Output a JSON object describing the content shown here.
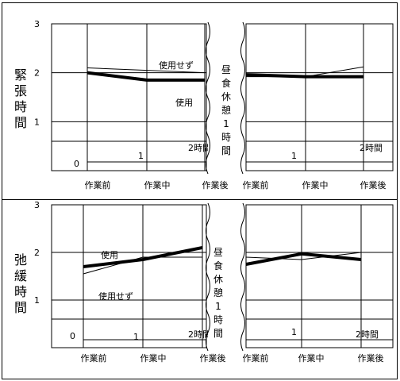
{
  "break_label": [
    "昼",
    "食",
    "休",
    "憩",
    "1",
    "時",
    "間"
  ],
  "chart_data": [
    {
      "type": "line",
      "ylabel": [
        "緊",
        "張",
        "時",
        "間"
      ],
      "yticks": [
        "3",
        "2",
        "1"
      ],
      "ylim": [
        0,
        3
      ],
      "left": {
        "categories": [
          "作業前",
          "作業中",
          "作業後"
        ],
        "series": [
          {
            "name": "使用",
            "values": [
              2.0,
              1.85,
              1.85
            ]
          },
          {
            "name": "使用せず",
            "values": [
              2.1,
              2.05,
              2.0
            ]
          }
        ],
        "inner_labels": [
          "0",
          "1",
          "2時間"
        ]
      },
      "right": {
        "categories": [
          "作業前",
          "作業中",
          "作業後"
        ],
        "series": [
          {
            "name": "使用",
            "values": [
              1.96,
              1.92,
              1.92
            ]
          },
          {
            "name": "使用せず",
            "values": [
              1.92,
              1.92,
              2.12
            ]
          }
        ],
        "inner_labels": [
          "1",
          "2時間"
        ]
      }
    },
    {
      "type": "line",
      "ylabel": [
        "弛",
        "緩",
        "時",
        "間"
      ],
      "yticks": [
        "3",
        "2",
        "1"
      ],
      "ylim": [
        0,
        3
      ],
      "left": {
        "categories": [
          "作業前",
          "作業中",
          "作業後"
        ],
        "series": [
          {
            "name": "使用",
            "values": [
              1.7,
              1.85,
              2.1
            ]
          },
          {
            "name": "使用せず",
            "values": [
              1.55,
              1.9,
              1.9
            ]
          }
        ],
        "inner_labels": [
          "0",
          "1",
          "2時間"
        ]
      },
      "right": {
        "categories": [
          "作業前",
          "作業中",
          "作業後"
        ],
        "series": [
          {
            "name": "使用",
            "values": [
              1.75,
              1.97,
              1.85
            ]
          },
          {
            "name": "使用せず",
            "values": [
              1.9,
              1.85,
              2.0
            ]
          }
        ],
        "inner_labels": [
          "1",
          "2時間"
        ]
      }
    }
  ]
}
